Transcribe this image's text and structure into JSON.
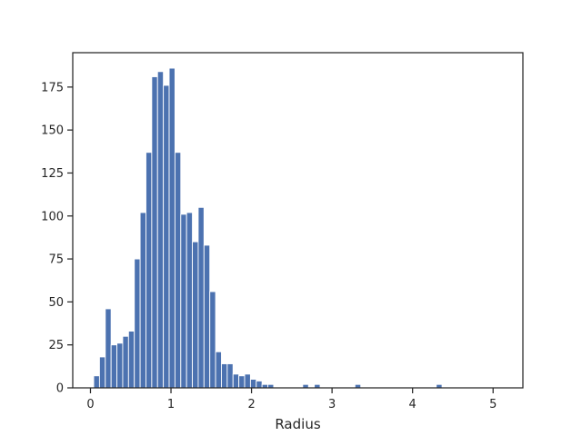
{
  "chart_data": {
    "type": "bar",
    "title": "",
    "xlabel": "Radius",
    "ylabel": "",
    "xlim": [
      -0.22,
      5.37
    ],
    "ylim": [
      0,
      195
    ],
    "xticks": [
      0,
      1,
      2,
      3,
      4,
      5
    ],
    "yticks": [
      0,
      25,
      50,
      75,
      100,
      125,
      150,
      175
    ],
    "grid": false,
    "bar_color": "#4c72b0",
    "bin_start": 0.04,
    "bin_width": 0.0721,
    "values": [
      7,
      18,
      46,
      25,
      26,
      30,
      33,
      75,
      102,
      137,
      181,
      184,
      176,
      186,
      137,
      101,
      102,
      85,
      105,
      83,
      56,
      21,
      14,
      14,
      8,
      7,
      8,
      5,
      4,
      2,
      2,
      0,
      0,
      0,
      0,
      0,
      2,
      0,
      2,
      0,
      0,
      0,
      0,
      0,
      0,
      2,
      0,
      0,
      0,
      0,
      0,
      0,
      0,
      0,
      0,
      0,
      0,
      0,
      0,
      2,
      0,
      0,
      0,
      0,
      0,
      0,
      0
    ]
  }
}
